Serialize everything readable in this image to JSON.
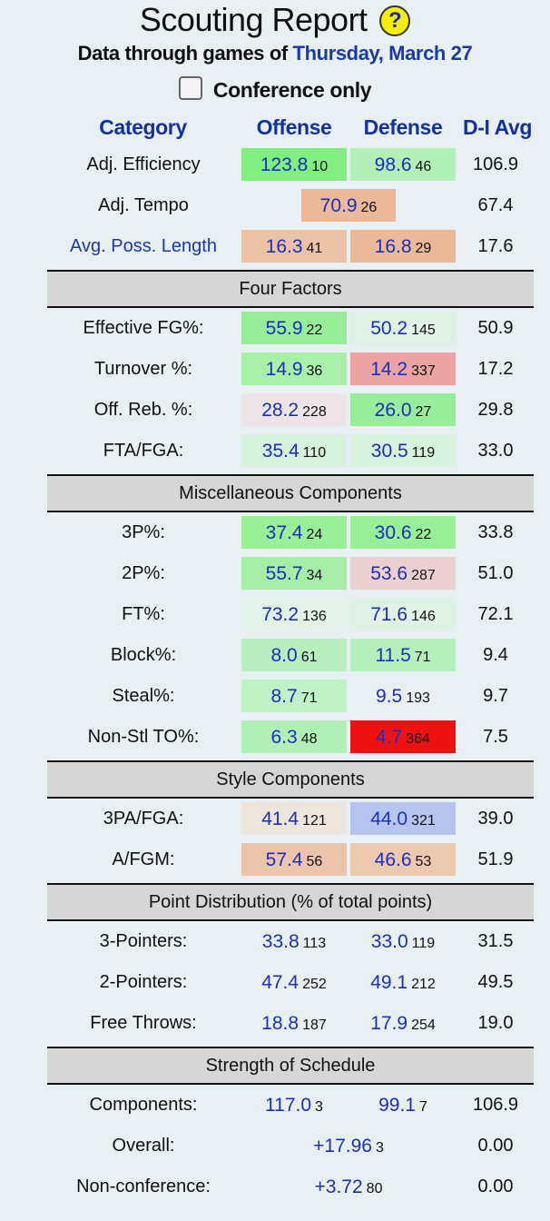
{
  "title": "Scouting Report",
  "help_icon": "?",
  "subtitle_prefix": "Data through games of",
  "subtitle_date": "Thursday, March 27",
  "conference_only_label": "Conference only",
  "conference_only_checked": false,
  "columns": {
    "category": "Category",
    "offense": "Offense",
    "defense": "Defense",
    "avg": "D-I Avg"
  },
  "sections": [
    {
      "title": null,
      "rows": [
        {
          "label": "Adj. Efficiency",
          "off": {
            "v": "123.8",
            "r": "10",
            "bg": "#80ee80"
          },
          "def": {
            "v": "98.6",
            "r": "46",
            "bg": "#b2f0ba"
          },
          "avg": "106.9"
        },
        {
          "label": "Adj. Tempo",
          "span": {
            "v": "70.9",
            "r": "26",
            "bg": "#ebb898"
          },
          "avg": "67.4"
        },
        {
          "label": "Avg. Poss. Length",
          "link": true,
          "off": {
            "v": "16.3",
            "r": "41",
            "bg": "#ecc2a6"
          },
          "def": {
            "v": "16.8",
            "r": "29",
            "bg": "#ebb898"
          },
          "avg": "17.6"
        }
      ]
    },
    {
      "title": "Four Factors",
      "rows": [
        {
          "label": "Effective FG%:",
          "off": {
            "v": "55.9",
            "r": "22",
            "bg": "#98ee98"
          },
          "def": {
            "v": "50.2",
            "r": "145",
            "bg": "#e0f1e6"
          },
          "avg": "50.9"
        },
        {
          "label": "Turnover %:",
          "off": {
            "v": "14.9",
            "r": "36",
            "bg": "#a8f0a8"
          },
          "def": {
            "v": "14.2",
            "r": "337",
            "bg": "#eba3a3"
          },
          "avg": "17.2"
        },
        {
          "label": "Off. Reb. %:",
          "off": {
            "v": "28.2",
            "r": "228",
            "bg": "#ece4e6"
          },
          "def": {
            "v": "26.0",
            "r": "27",
            "bg": "#98ee98"
          },
          "avg": "29.8"
        },
        {
          "label": "FTA/FGA:",
          "off": {
            "v": "35.4",
            "r": "110",
            "bg": "#d6f2dc"
          },
          "def": {
            "v": "30.5",
            "r": "119",
            "bg": "#d8f2de"
          },
          "avg": "33.0"
        }
      ]
    },
    {
      "title": "Miscellaneous Components",
      "rows": [
        {
          "label": "3P%:",
          "off": {
            "v": "37.4",
            "r": "24",
            "bg": "#98ef98"
          },
          "def": {
            "v": "30.6",
            "r": "22",
            "bg": "#98ef98"
          },
          "avg": "33.8"
        },
        {
          "label": "2P%:",
          "off": {
            "v": "55.7",
            "r": "34",
            "bg": "#a6eea6"
          },
          "def": {
            "v": "53.6",
            "r": "287",
            "bg": "#ebd0d2"
          },
          "avg": "51.0"
        },
        {
          "label": "FT%:",
          "off": {
            "v": "73.2",
            "r": "136",
            "bg": "#e2f2e8"
          },
          "def": {
            "v": "71.6",
            "r": "146",
            "bg": "#e0f2e6"
          },
          "avg": "72.1"
        },
        {
          "label": "Block%:",
          "off": {
            "v": "8.0",
            "r": "61",
            "bg": "#b7efc0"
          },
          "def": {
            "v": "11.5",
            "r": "71",
            "bg": "#b4f0bc"
          },
          "avg": "9.4"
        },
        {
          "label": "Steal%:",
          "off": {
            "v": "8.7",
            "r": "71",
            "bg": "#c0f2c8"
          },
          "def": {
            "v": "9.5",
            "r": "193",
            "bg": "#e9eff2"
          },
          "avg": "9.7"
        },
        {
          "label": "Non-Stl TO%:",
          "off": {
            "v": "6.3",
            "r": "48",
            "bg": "#b0f0b8"
          },
          "def": {
            "v": "4.7",
            "r": "364",
            "bg": "#ee1111"
          },
          "avg": "7.5"
        }
      ]
    },
    {
      "title": "Style Components",
      "rows": [
        {
          "label": "3PA/FGA:",
          "off": {
            "v": "41.4",
            "r": "121",
            "bg": "#ede6df"
          },
          "def": {
            "v": "44.0",
            "r": "321",
            "bg": "#b8c4f0"
          },
          "avg": "39.0"
        },
        {
          "label": "A/FGM:",
          "off": {
            "v": "57.4",
            "r": "56",
            "bg": "#ebc4aa"
          },
          "def": {
            "v": "46.6",
            "r": "53",
            "bg": "#ecc8ae"
          },
          "avg": "51.9"
        }
      ]
    },
    {
      "title": "Point Distribution (% of total points)",
      "rows": [
        {
          "label": "3-Pointers:",
          "off": {
            "v": "33.8",
            "r": "113"
          },
          "def": {
            "v": "33.0",
            "r": "119"
          },
          "avg": "31.5"
        },
        {
          "label": "2-Pointers:",
          "off": {
            "v": "47.4",
            "r": "252"
          },
          "def": {
            "v": "49.1",
            "r": "212"
          },
          "avg": "49.5"
        },
        {
          "label": "Free Throws:",
          "off": {
            "v": "18.8",
            "r": "187"
          },
          "def": {
            "v": "17.9",
            "r": "254"
          },
          "avg": "19.0"
        }
      ]
    },
    {
      "title": "Strength of Schedule",
      "rows": [
        {
          "label": "Components:",
          "off": {
            "v": "117.0",
            "r": "3"
          },
          "def": {
            "v": "99.1",
            "r": "7"
          },
          "avg": "106.9"
        },
        {
          "label": "Overall:",
          "span": {
            "v": "+17.96",
            "r": "3"
          },
          "wide": true,
          "avg": "0.00"
        },
        {
          "label": "Non-conference:",
          "span": {
            "v": "+3.72",
            "r": "80"
          },
          "wide": true,
          "avg": "0.00"
        }
      ]
    }
  ]
}
